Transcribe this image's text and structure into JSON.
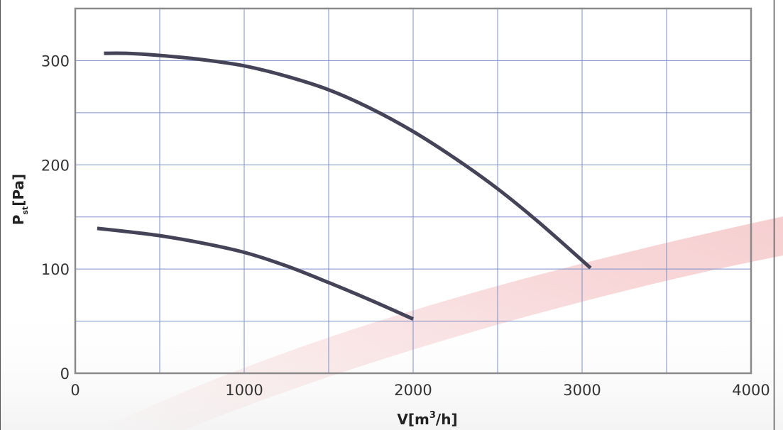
{
  "chart_data": {
    "type": "line",
    "xlabel": {
      "main": "V[m",
      "sup": "3",
      "tail": "/h]"
    },
    "ylabel": {
      "main": "P",
      "sub": "st",
      "tail": "[Pa]"
    },
    "xlim": [
      0,
      4000
    ],
    "ylim": [
      0,
      350
    ],
    "x_ticks": [
      0,
      1000,
      2000,
      3000,
      4000
    ],
    "x_tick_labels": [
      "0",
      "1000",
      "2000",
      "3000",
      "4000"
    ],
    "y_ticks": [
      0,
      100,
      200,
      300
    ],
    "y_tick_labels": [
      "0",
      "100",
      "200",
      "300"
    ],
    "grid": true,
    "grid_x_step": 500,
    "grid_y_step": 50,
    "colors": {
      "series": "#454357",
      "grid": "#7b8fc8",
      "frame": "#8a8a8a",
      "band": "#d7252b"
    },
    "series": [
      {
        "x": [
          170,
          300,
          500,
          750,
          1000,
          1250,
          1500,
          1750,
          2000,
          2250,
          2500,
          2750,
          3050
        ],
        "y": [
          307,
          307,
          305,
          301,
          295,
          285,
          272,
          254,
          232,
          206,
          177,
          144,
          101
        ]
      },
      {
        "x": [
          130,
          300,
          500,
          750,
          1000,
          1250,
          1500,
          1750,
          2000
        ],
        "y": [
          139,
          136,
          132,
          125,
          116,
          103,
          87,
          70,
          52
        ]
      }
    ]
  }
}
